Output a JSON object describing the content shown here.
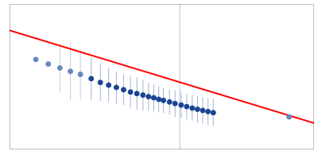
{
  "chart_data": {
    "type": "scatter",
    "xlim": [
      -0.05,
      1.05
    ],
    "ylim": [
      0.32,
      0.7
    ],
    "tick_labels": false,
    "grid": false,
    "series": [
      {
        "type": "line",
        "color": "#ff0000",
        "x": [
          -0.05,
          1.05
        ],
        "values": [
          0.631,
          0.389
        ]
      },
      {
        "type": "vline",
        "color": "#aac8e8",
        "x": [
          0.565
        ]
      },
      {
        "type": "scatter",
        "marker": "circle",
        "color": "#6688bb",
        "x": [
          0.045,
          0.09,
          0.132,
          0.17,
          0.206,
          0.96
        ],
        "values": [
          0.555,
          0.543,
          0.533,
          0.524,
          0.516,
          0.405
        ],
        "yerr": [
          0.0,
          0.0,
          0.065,
          0.075,
          0.065,
          0.0
        ]
      },
      {
        "type": "scatter",
        "marker": "circle",
        "color": "#1a4494",
        "x": [
          0.245,
          0.278,
          0.308,
          0.336,
          0.362,
          0.387,
          0.41,
          0.432,
          0.452,
          0.471,
          0.489,
          0.506,
          0.528,
          0.548,
          0.57,
          0.59,
          0.61,
          0.629,
          0.648,
          0.667,
          0.686
        ],
        "values": [
          0.505,
          0.495,
          0.488,
          0.482,
          0.476,
          0.47,
          0.466,
          0.462,
          0.458,
          0.455,
          0.451,
          0.448,
          0.444,
          0.44,
          0.436,
          0.432,
          0.428,
          0.425,
          0.422,
          0.419,
          0.416
        ],
        "yerr": [
          0.055,
          0.048,
          0.045,
          0.042,
          0.04,
          0.04,
          0.042,
          0.04,
          0.036,
          0.035,
          0.034,
          0.033,
          0.033,
          0.035,
          0.033,
          0.033,
          0.033,
          0.035,
          0.035,
          0.035,
          0.035
        ]
      }
    ]
  }
}
